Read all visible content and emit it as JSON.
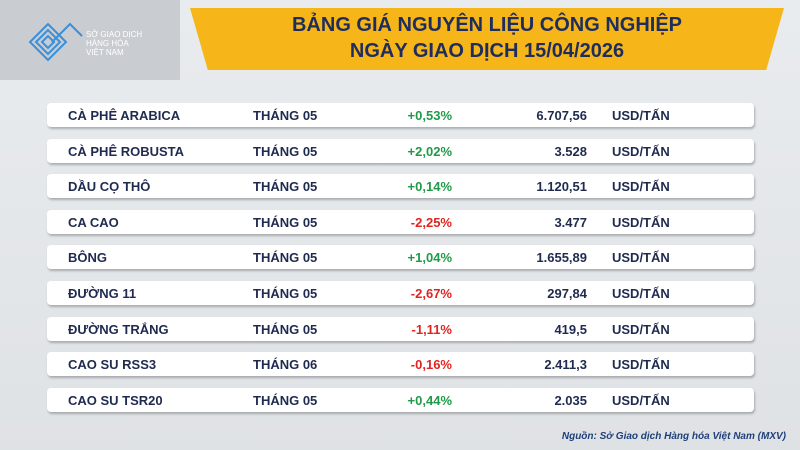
{
  "logo": {
    "lines": [
      "SỞ GIAO DỊCH",
      "HÀNG HÓA",
      "VIỆT NAM"
    ]
  },
  "header": {
    "title_lines": [
      "BẢNG GIÁ NGUYÊN LIỆU CÔNG NGHIỆP",
      "NGÀY GIAO DỊCH 15/04/2026"
    ]
  },
  "table": {
    "rows": [
      [
        "CÀ PHÊ ARABICA",
        "THÁNG 05",
        "+0,53%",
        "6.707,56",
        "USD/TẤN"
      ],
      [
        "CÀ PHÊ ROBUSTA",
        "THÁNG 05",
        "+2,02%",
        "3.528",
        "USD/TẤN"
      ],
      [
        "DẦU CỌ THÔ",
        "THÁNG 05",
        "+0,14%",
        "1.120,51",
        "USD/TẤN"
      ],
      [
        "CA CAO",
        "THÁNG 05",
        "-2,25%",
        "3.477",
        "USD/TẤN"
      ],
      [
        "BÔNG",
        "THÁNG 05",
        "+1,04%",
        "1.655,89",
        "USD/TẤN"
      ],
      [
        "ĐƯỜNG 11",
        "THÁNG 05",
        "-2,67%",
        "297,84",
        "USD/TẤN"
      ],
      [
        "ĐƯỜNG TRẮNG",
        "THÁNG 05",
        "-1,11%",
        "419,5",
        "USD/TẤN"
      ],
      [
        "CAO SU RSS3",
        "THÁNG 06",
        "-0,16%",
        "2.411,3",
        "USD/TẤN"
      ],
      [
        "CAO SU TSR20",
        "THÁNG 05",
        "+0,44%",
        "2.035",
        "USD/TẤN"
      ]
    ]
  },
  "source": "Nguồn: Sở Giao dịch Hàng hóa Việt Nam (MXV)"
}
